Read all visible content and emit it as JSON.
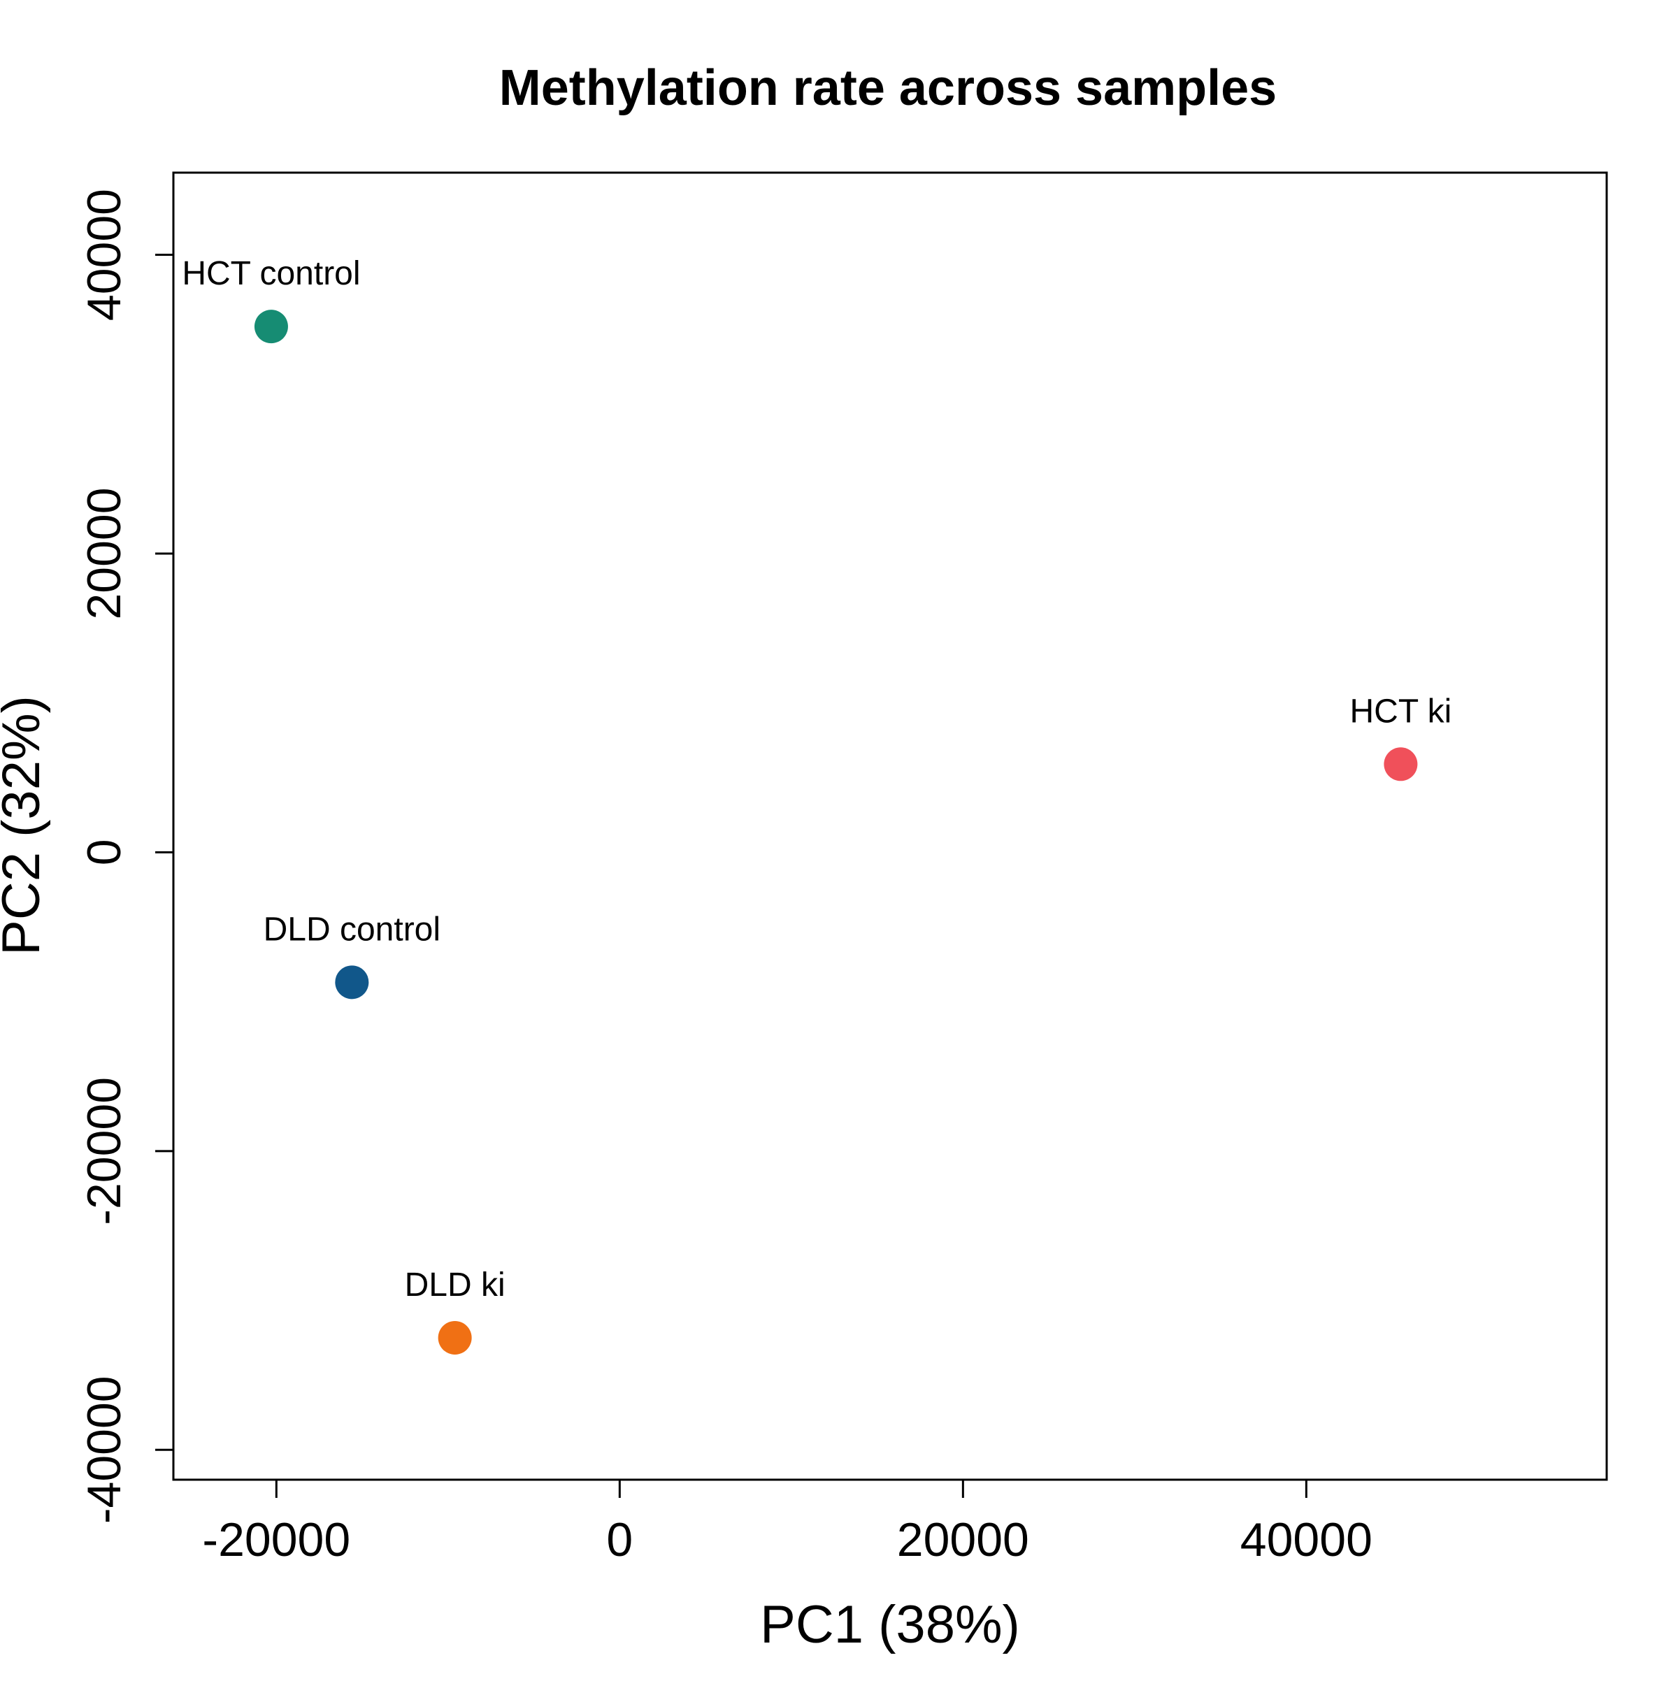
{
  "chart_data": {
    "type": "scatter",
    "title": "Methylation rate across samples",
    "xlabel": "PC1 (38%)",
    "ylabel": "PC2 (32%)",
    "xlim": [
      -26000,
      57500
    ],
    "ylim": [
      -42000,
      45500
    ],
    "xticks": [
      -20000,
      0,
      20000,
      40000
    ],
    "xtick_labels": [
      "-20000",
      "0",
      "20000",
      "40000"
    ],
    "yticks": [
      -40000,
      -20000,
      0,
      20000,
      40000
    ],
    "ytick_labels": [
      "-40000",
      "-20000",
      "0",
      "20000",
      "40000"
    ],
    "grid": false,
    "legend": false,
    "points": [
      {
        "label": "HCT control",
        "x": -20300,
        "y": 35200,
        "color": "#168c73"
      },
      {
        "label": "DLD control",
        "x": -15600,
        "y": -8700,
        "color": "#11578a"
      },
      {
        "label": "DLD ki",
        "x": -9600,
        "y": -32500,
        "color": "#f07014"
      },
      {
        "label": "HCT ki",
        "x": 45500,
        "y": 5900,
        "color": "#f0505a"
      }
    ]
  }
}
